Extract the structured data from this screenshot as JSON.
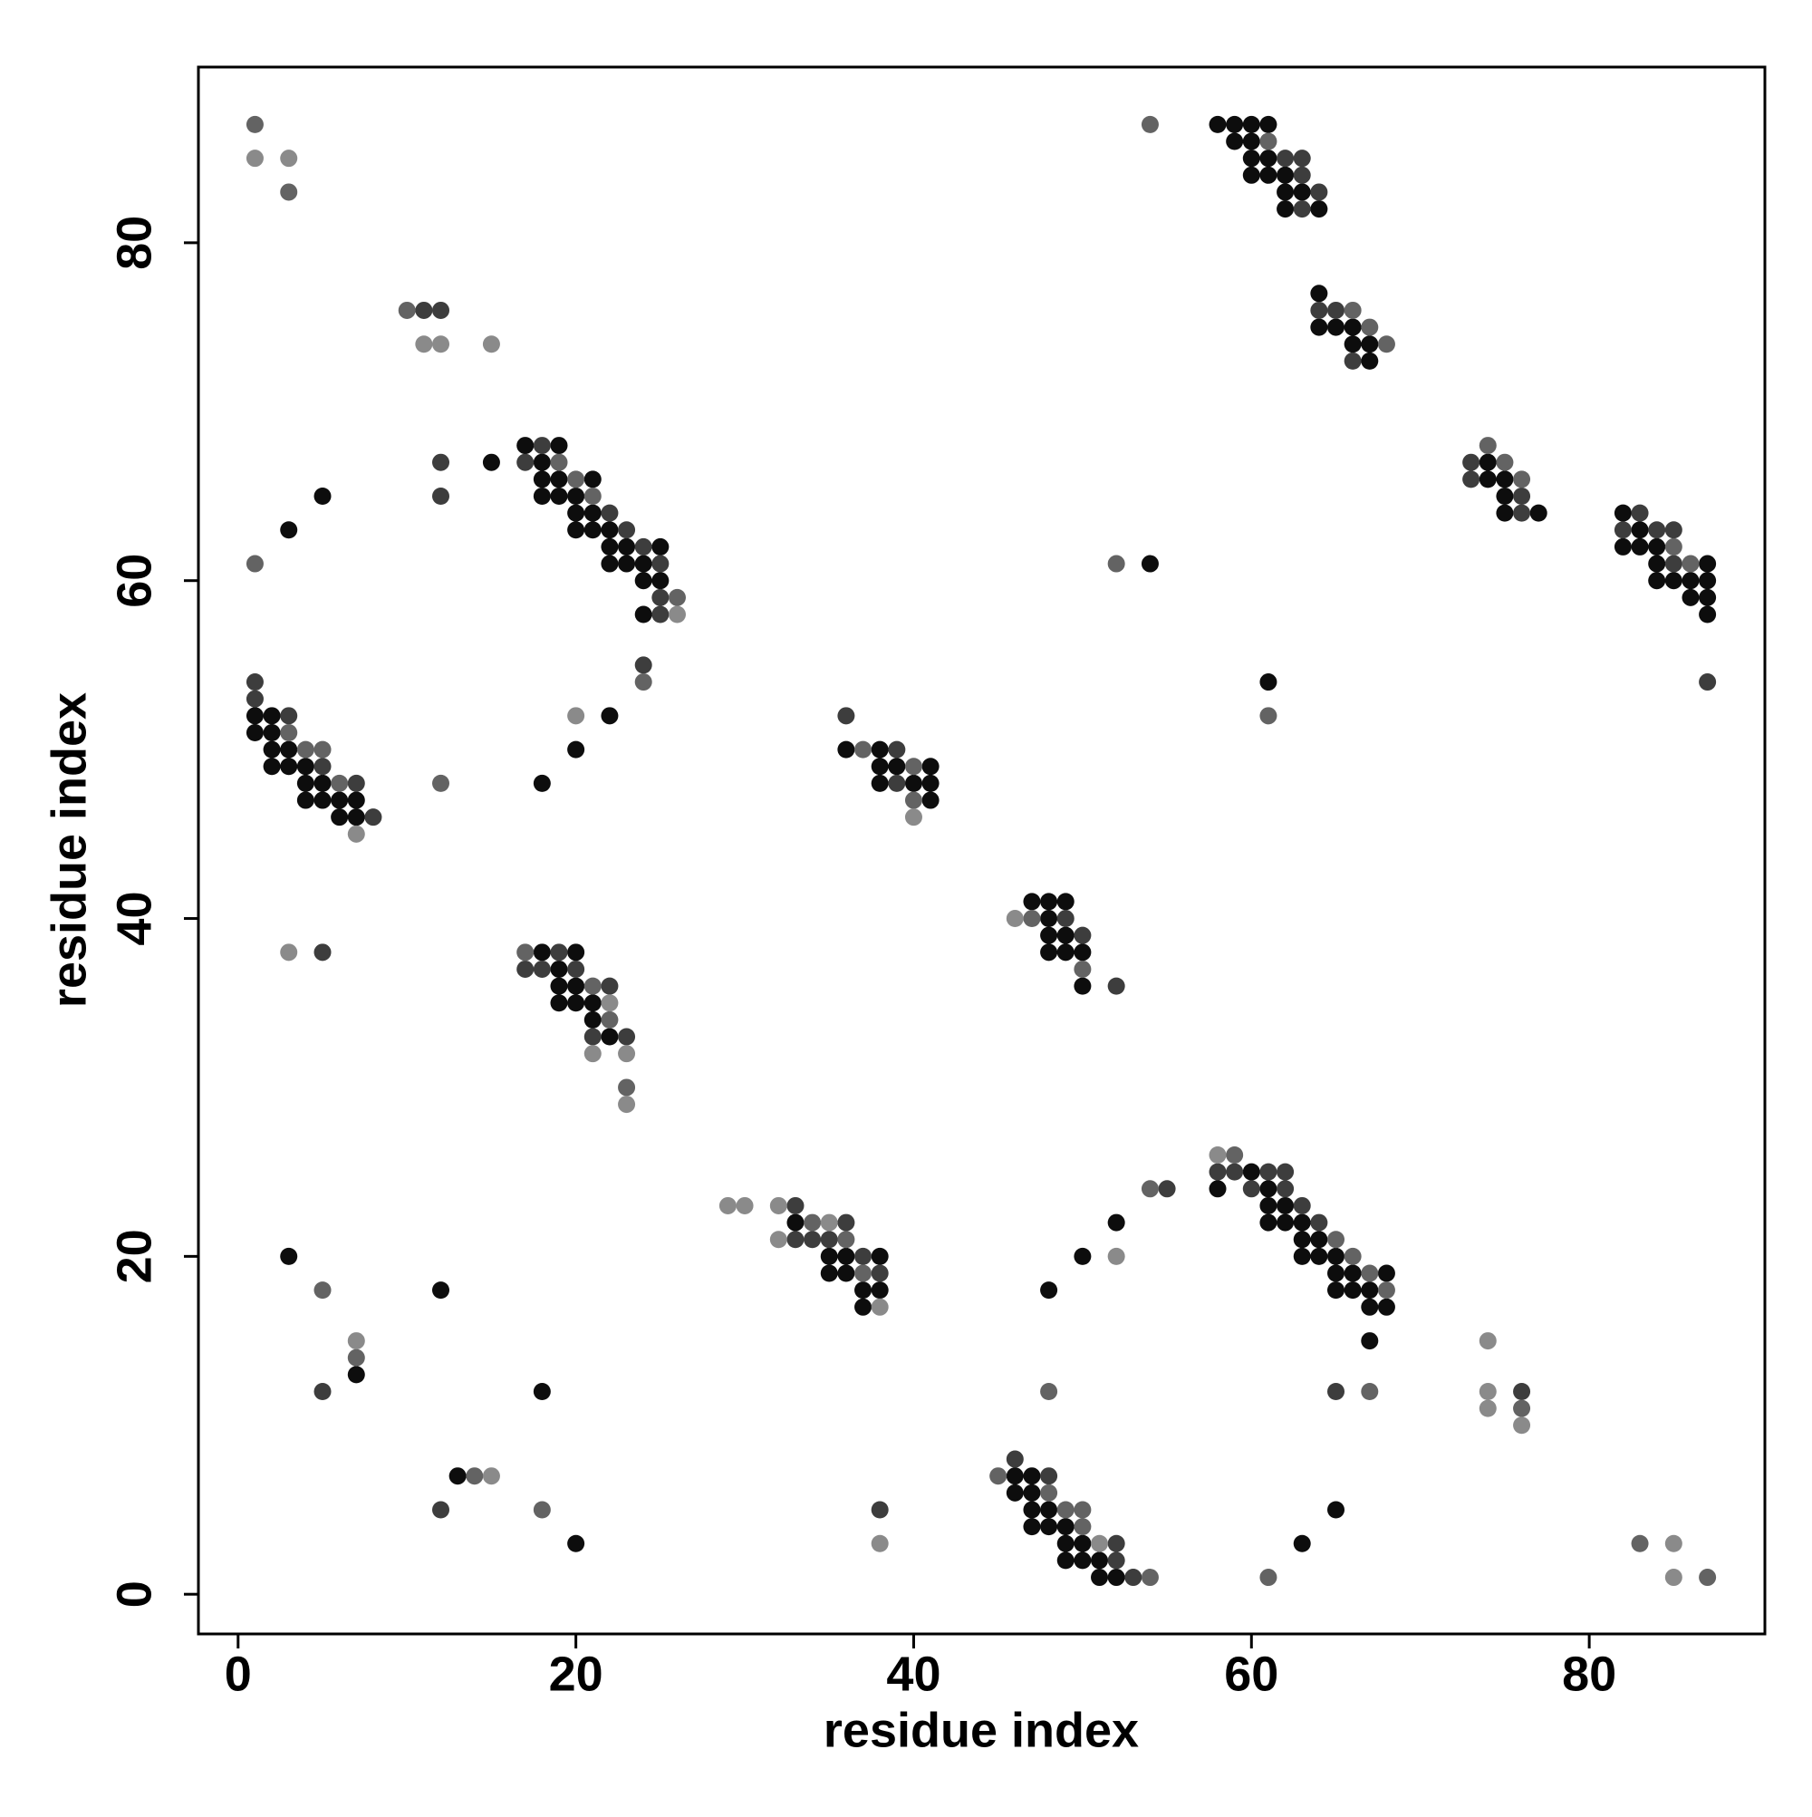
{
  "chart_data": {
    "type": "scatter",
    "xlabel": "residue index",
    "ylabel": "residue index",
    "xlim": [
      -2.35,
      90.4
    ],
    "ylim": [
      -2.35,
      90.4
    ],
    "xticks": [
      0,
      20,
      40,
      60,
      80
    ],
    "yticks": [
      0,
      20,
      40,
      60,
      80
    ],
    "series": [
      {
        "color": "#0d0d0d",
        "x": [
          15,
          5,
          3,
          17,
          19,
          18,
          18,
          19,
          21,
          18,
          19,
          20,
          20,
          21,
          20,
          21,
          22,
          22,
          23,
          25,
          22,
          23,
          24,
          24,
          25,
          24,
          1,
          2,
          1,
          2,
          2,
          3,
          2,
          3,
          4,
          4,
          5,
          4,
          5,
          6,
          7,
          6,
          7,
          18,
          20,
          22,
          18,
          20,
          19,
          19,
          20,
          19,
          20,
          21,
          21,
          22,
          36,
          38,
          38,
          39,
          41,
          38,
          40,
          41,
          41,
          47,
          48,
          49,
          48,
          48,
          49,
          48,
          49,
          50,
          50,
          54,
          61,
          58,
          59,
          60,
          61,
          59,
          60,
          60,
          61,
          60,
          61,
          62,
          62,
          63,
          62,
          64,
          64,
          64,
          65,
          66,
          66,
          67,
          67,
          74,
          74,
          75,
          75,
          75,
          77,
          82,
          83,
          82,
          83,
          84,
          84,
          87,
          84,
          85,
          86,
          87,
          86,
          87,
          87,
          33,
          35,
          36,
          38,
          35,
          36,
          37,
          38,
          37,
          60,
          58,
          61,
          61,
          62,
          61,
          62,
          63,
          63,
          64,
          63,
          64,
          65,
          65,
          66,
          68,
          65,
          66,
          67,
          67,
          68,
          67,
          52,
          50,
          48,
          3,
          12,
          7,
          18,
          13,
          20,
          46,
          47,
          46,
          47,
          47,
          48,
          47,
          48,
          49,
          49,
          50,
          49,
          50,
          51,
          51,
          52,
          65,
          63
        ],
        "y": [
          67,
          65,
          63,
          68,
          68,
          67,
          66,
          66,
          66,
          65,
          65,
          65,
          64,
          64,
          63,
          63,
          63,
          62,
          62,
          62,
          61,
          61,
          61,
          60,
          60,
          58,
          52,
          52,
          51,
          51,
          50,
          50,
          49,
          49,
          49,
          48,
          48,
          47,
          47,
          47,
          47,
          46,
          46,
          48,
          50,
          52,
          38,
          38,
          37,
          36,
          36,
          35,
          35,
          35,
          34,
          33,
          50,
          50,
          49,
          49,
          49,
          48,
          48,
          48,
          47,
          41,
          41,
          41,
          40,
          39,
          39,
          38,
          38,
          38,
          36,
          61,
          54,
          87,
          87,
          87,
          87,
          86,
          86,
          85,
          85,
          84,
          84,
          84,
          83,
          83,
          82,
          82,
          77,
          75,
          75,
          75,
          74,
          74,
          73,
          67,
          66,
          66,
          65,
          64,
          64,
          64,
          63,
          62,
          62,
          62,
          61,
          61,
          60,
          60,
          60,
          60,
          59,
          59,
          58,
          22,
          20,
          20,
          20,
          19,
          19,
          18,
          18,
          17,
          25,
          24,
          24,
          23,
          23,
          22,
          22,
          22,
          21,
          21,
          20,
          20,
          20,
          19,
          19,
          19,
          18,
          18,
          18,
          17,
          17,
          15,
          22,
          20,
          18,
          20,
          18,
          13,
          12,
          7,
          3,
          7,
          7,
          6,
          6,
          5,
          5,
          4,
          4,
          4,
          3,
          3,
          2,
          2,
          2,
          1,
          1,
          5,
          3
        ]
      },
      {
        "color": "#3d3d3d",
        "x": [
          11,
          12,
          12,
          12,
          18,
          17,
          22,
          23,
          24,
          25,
          25,
          25,
          24,
          1,
          1,
          3,
          5,
          7,
          8,
          5,
          19,
          17,
          18,
          20,
          22,
          21,
          23,
          36,
          39,
          39,
          49,
          50,
          52,
          62,
          63,
          63,
          64,
          63,
          64,
          65,
          66,
          73,
          73,
          76,
          76,
          83,
          82,
          84,
          85,
          85,
          87,
          33,
          36,
          33,
          34,
          35,
          37,
          38,
          58,
          59,
          61,
          62,
          60,
          62,
          63,
          64,
          55,
          5,
          12,
          38,
          65,
          76,
          46,
          48,
          52,
          52,
          53
        ],
        "y": [
          76,
          76,
          67,
          65,
          68,
          67,
          64,
          63,
          62,
          61,
          59,
          58,
          55,
          54,
          53,
          52,
          49,
          48,
          46,
          38,
          38,
          37,
          37,
          37,
          36,
          33,
          33,
          52,
          50,
          48,
          40,
          39,
          36,
          85,
          85,
          84,
          83,
          82,
          76,
          76,
          73,
          67,
          66,
          65,
          64,
          64,
          63,
          63,
          63,
          61,
          54,
          23,
          22,
          21,
          21,
          21,
          20,
          19,
          25,
          25,
          25,
          25,
          24,
          24,
          23,
          22,
          24,
          12,
          5,
          5,
          12,
          12,
          8,
          7,
          3,
          2,
          1
        ]
      },
      {
        "color": "#636363",
        "x": [
          1,
          3,
          10,
          1,
          19,
          20,
          21,
          26,
          24,
          3,
          4,
          5,
          6,
          12,
          17,
          21,
          22,
          23,
          37,
          40,
          40,
          47,
          50,
          52,
          61,
          54,
          61,
          66,
          67,
          68,
          74,
          75,
          76,
          85,
          86,
          34,
          36,
          37,
          59,
          65,
          66,
          67,
          68,
          54,
          5,
          7,
          14,
          18,
          48,
          67,
          76,
          45,
          48,
          49,
          50,
          50,
          54,
          61,
          83,
          87
        ],
        "y": [
          87,
          83,
          76,
          61,
          67,
          66,
          65,
          59,
          54,
          51,
          50,
          50,
          48,
          48,
          38,
          36,
          34,
          30,
          50,
          49,
          47,
          40,
          37,
          61,
          52,
          87,
          86,
          76,
          75,
          74,
          68,
          67,
          66,
          62,
          61,
          22,
          21,
          19,
          26,
          21,
          20,
          19,
          18,
          24,
          18,
          14,
          7,
          5,
          12,
          12,
          11,
          7,
          6,
          5,
          5,
          4,
          1,
          1,
          3,
          1
        ]
      },
      {
        "color": "#8a8a8a",
        "x": [
          1,
          3,
          11,
          12,
          15,
          26,
          7,
          20,
          3,
          22,
          21,
          23,
          23,
          40,
          46,
          29,
          30,
          32,
          35,
          32,
          38,
          58,
          52,
          7,
          15,
          38,
          74,
          74,
          74,
          76,
          51,
          85,
          85
        ],
        "y": [
          85,
          85,
          74,
          74,
          74,
          58,
          45,
          52,
          38,
          35,
          32,
          32,
          29,
          46,
          40,
          23,
          23,
          23,
          22,
          21,
          17,
          26,
          20,
          15,
          7,
          3,
          15,
          12,
          11,
          10,
          3,
          3,
          1
        ]
      }
    ]
  }
}
